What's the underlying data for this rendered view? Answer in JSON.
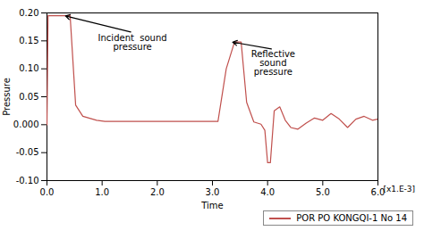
{
  "chart_data": {
    "type": "line",
    "xlabel": "Time",
    "ylabel": "Pressure",
    "x": [
      0.0,
      0.02,
      0.42,
      0.52,
      0.65,
      0.9,
      1.05,
      1.5,
      2.0,
      2.5,
      2.85,
      3.1,
      3.25,
      3.4,
      3.52,
      3.62,
      3.75,
      3.88,
      3.95,
      4.0,
      4.05,
      4.12,
      4.22,
      4.32,
      4.42,
      4.55,
      4.7,
      4.85,
      5.0,
      5.15,
      5.3,
      5.45,
      5.6,
      5.75,
      5.9,
      6.0
    ],
    "series": [
      {
        "name": "POR PO KONGQI-1 No 14",
        "color": "#c0504d",
        "values": [
          0.0,
          0.195,
          0.195,
          0.035,
          0.015,
          0.008,
          0.006,
          0.006,
          0.006,
          0.006,
          0.006,
          0.006,
          0.1,
          0.148,
          0.148,
          0.04,
          0.005,
          0.001,
          -0.01,
          -0.068,
          -0.068,
          0.025,
          0.032,
          0.008,
          -0.005,
          -0.008,
          0.003,
          0.012,
          0.008,
          0.02,
          0.01,
          -0.005,
          0.01,
          0.015,
          0.008,
          0.01
        ]
      }
    ],
    "xlim": [
      0.0,
      6.0
    ],
    "xticks": [
      {
        "value": 0,
        "label": "0.0"
      },
      {
        "value": 1,
        "label": "1.0"
      },
      {
        "value": 2,
        "label": "2.0"
      },
      {
        "value": 3,
        "label": "3.0"
      },
      {
        "value": 4,
        "label": "4.0"
      },
      {
        "value": 5,
        "label": "5.0"
      },
      {
        "value": 6,
        "label": "6.0"
      }
    ],
    "ylim": [
      -0.1,
      0.2
    ],
    "yticks": [
      {
        "value": -0.1,
        "label": "-0.10"
      },
      -0.05,
      {
        "value": 0,
        "label": "0.000"
      },
      0.05,
      {
        "value": 0.1,
        "label": "0.10"
      },
      0.15,
      {
        "value": 0.2,
        "label": "0.20"
      }
    ],
    "grid": false,
    "legend": "lower right",
    "annotations": [
      {
        "text": "[x1.E-3]"
      },
      {
        "text": "Incident  sound\npressure",
        "x": 0.32,
        "y": 0.195,
        "text_x": 1.55,
        "text_y": 0.165
      },
      {
        "text": "Reflective\nsound\npressure",
        "x": 3.35,
        "y": 0.148,
        "text_x": 4.1,
        "text_y": 0.135
      }
    ]
  }
}
